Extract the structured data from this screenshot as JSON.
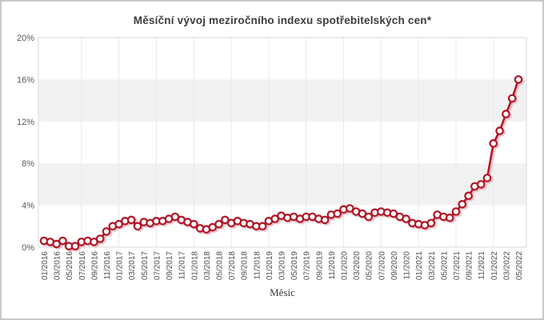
{
  "chart_data": {
    "type": "line",
    "title": "Měsíční vývoj meziročního indexu spotřebitelských cen*",
    "xlabel": "Měsíc",
    "ylabel": "",
    "ylim": [
      0,
      20
    ],
    "yticks": [
      "0%",
      "4%",
      "8%",
      "12%",
      "16%",
      "20%"
    ],
    "x_tick_step": 2,
    "vgrid_step_months": 6,
    "grid_bands_pct": [
      [
        4,
        8
      ],
      [
        12,
        16
      ]
    ],
    "legend_position": "none",
    "x": [
      "01/2016",
      "02/2016",
      "03/2016",
      "04/2016",
      "05/2016",
      "06/2016",
      "07/2016",
      "08/2016",
      "09/2016",
      "10/2016",
      "11/2016",
      "12/2016",
      "01/2017",
      "02/2017",
      "03/2017",
      "04/2017",
      "05/2017",
      "06/2017",
      "07/2017",
      "08/2017",
      "09/2017",
      "10/2017",
      "11/2017",
      "12/2017",
      "01/2018",
      "02/2018",
      "03/2018",
      "04/2018",
      "05/2018",
      "06/2018",
      "07/2018",
      "08/2018",
      "09/2018",
      "10/2018",
      "11/2018",
      "12/2018",
      "01/2019",
      "02/2019",
      "03/2019",
      "04/2019",
      "05/2019",
      "06/2019",
      "07/2019",
      "08/2019",
      "09/2019",
      "10/2019",
      "11/2019",
      "12/2019",
      "01/2020",
      "02/2020",
      "03/2020",
      "04/2020",
      "05/2020",
      "06/2020",
      "07/2020",
      "08/2020",
      "09/2020",
      "10/2020",
      "11/2020",
      "12/2020",
      "01/2021",
      "02/2021",
      "03/2021",
      "04/2021",
      "05/2021",
      "06/2021",
      "07/2021",
      "08/2021",
      "09/2021",
      "10/2021",
      "11/2021",
      "12/2021",
      "01/2022",
      "02/2022",
      "03/2022",
      "04/2022",
      "05/2022"
    ],
    "values": [
      0.6,
      0.5,
      0.3,
      0.6,
      0.1,
      0.1,
      0.5,
      0.6,
      0.5,
      0.8,
      1.5,
      2.0,
      2.2,
      2.5,
      2.6,
      2.0,
      2.4,
      2.3,
      2.5,
      2.5,
      2.7,
      2.9,
      2.6,
      2.4,
      2.2,
      1.8,
      1.7,
      1.9,
      2.2,
      2.6,
      2.3,
      2.5,
      2.3,
      2.2,
      2.0,
      2.0,
      2.5,
      2.7,
      3.0,
      2.8,
      2.9,
      2.7,
      2.9,
      2.9,
      2.7,
      2.6,
      3.1,
      3.2,
      3.6,
      3.7,
      3.4,
      3.2,
      2.9,
      3.3,
      3.4,
      3.3,
      3.2,
      2.9,
      2.7,
      2.3,
      2.2,
      2.1,
      2.3,
      3.1,
      2.9,
      2.8,
      3.4,
      4.1,
      4.9,
      5.8,
      6.0,
      6.6,
      9.9,
      11.1,
      12.7,
      14.2,
      16.0
    ],
    "colors": {
      "line": "#b01225",
      "marker_fill": "#ffffff",
      "shadow": "#e0a7b1",
      "band": "#f2f2f2",
      "vgrid": "#e9e9e9",
      "plot_border": "#d9d9d9",
      "ytick_text": "#595959",
      "xtick_text": "#4f4f4f",
      "title_text": "#3d3d3d",
      "frame_border": "#c9c9c9"
    }
  }
}
